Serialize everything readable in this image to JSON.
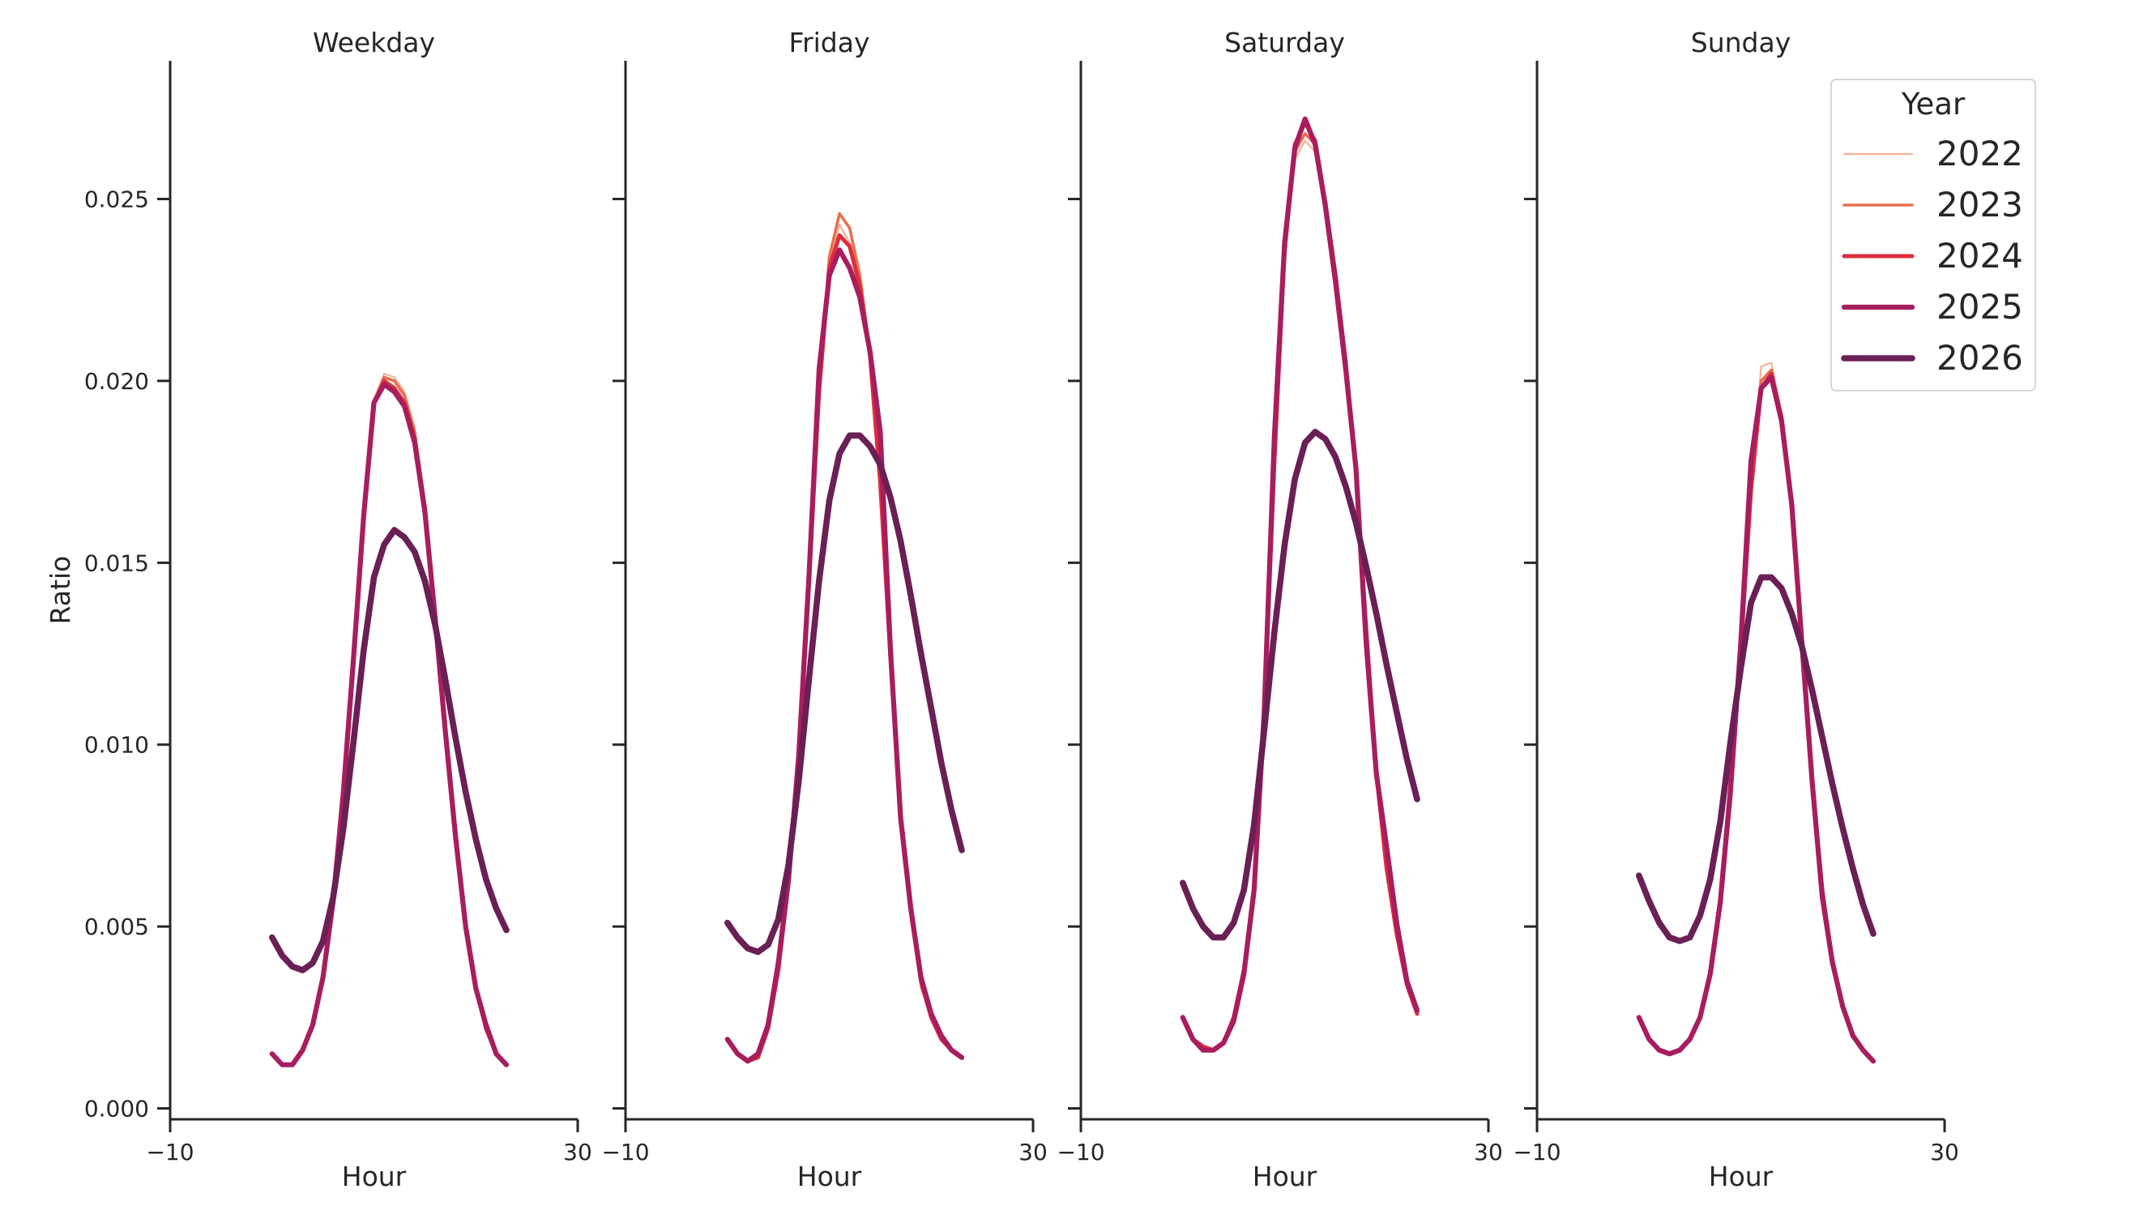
{
  "chart_data": {
    "type": "line",
    "ylabel": "Ratio",
    "xlabel": "Hour",
    "xlim": [
      -10,
      30
    ],
    "ylim": [
      -0.0003,
      0.0288
    ],
    "x_ticks": [
      -10,
      30
    ],
    "y_ticks": [
      0.0,
      0.005,
      0.01,
      0.015,
      0.02,
      0.025
    ],
    "y_tick_labels": [
      "0.000",
      "0.005",
      "0.010",
      "0.015",
      "0.020",
      "0.025"
    ],
    "x_tick_labels": [
      "−10",
      "30"
    ],
    "legend": {
      "title": "Year",
      "placement": "top-right",
      "entries": [
        "2022",
        "2023",
        "2024",
        "2025",
        "2026"
      ]
    },
    "series_colors": {
      "2022": "#f3b397",
      "2023": "#ea6f4f",
      "2024": "#dc2e3c",
      "2025": "#a81d5d",
      "2026": "#6a1f55"
    },
    "x": [
      0,
      1,
      2,
      3,
      4,
      5,
      6,
      7,
      8,
      9,
      10,
      11,
      12,
      13,
      14,
      15,
      16,
      17,
      18,
      19,
      20,
      21,
      22,
      23
    ],
    "panels": [
      {
        "title": "Weekday",
        "series": [
          {
            "name": "2022",
            "values": [
              0.0015,
              0.0012,
              0.0012,
              0.0016,
              0.0023,
              0.0036,
              0.0057,
              0.0086,
              0.0123,
              0.0163,
              0.0195,
              0.0202,
              0.0201,
              0.0197,
              0.0187,
              0.0166,
              0.0135,
              0.0104,
              0.0075,
              0.005,
              0.0033,
              0.0022,
              0.0015,
              0.0012
            ]
          },
          {
            "name": "2023",
            "values": [
              0.0015,
              0.0012,
              0.0012,
              0.0016,
              0.0023,
              0.0036,
              0.0057,
              0.0086,
              0.0123,
              0.0163,
              0.0194,
              0.0201,
              0.02,
              0.0196,
              0.0186,
              0.0166,
              0.0136,
              0.0104,
              0.0075,
              0.005,
              0.0033,
              0.0022,
              0.0015,
              0.0012
            ]
          },
          {
            "name": "2024",
            "values": [
              0.0015,
              0.0012,
              0.0012,
              0.0016,
              0.0023,
              0.0036,
              0.0057,
              0.0086,
              0.0123,
              0.0162,
              0.0194,
              0.02,
              0.0198,
              0.0194,
              0.0184,
              0.0165,
              0.0135,
              0.0104,
              0.0075,
              0.005,
              0.0033,
              0.0022,
              0.0015,
              0.0012
            ]
          },
          {
            "name": "2025",
            "values": [
              0.0015,
              0.0012,
              0.0012,
              0.0016,
              0.0023,
              0.0036,
              0.0057,
              0.0087,
              0.0124,
              0.0163,
              0.0194,
              0.0199,
              0.0197,
              0.0193,
              0.0183,
              0.0164,
              0.0135,
              0.0104,
              0.0075,
              0.005,
              0.0033,
              0.0023,
              0.0015,
              0.0012
            ]
          },
          {
            "name": "2026",
            "values": [
              0.0047,
              0.0042,
              0.0039,
              0.0038,
              0.004,
              0.0046,
              0.0058,
              0.0077,
              0.0101,
              0.0126,
              0.0146,
              0.0155,
              0.0159,
              0.0157,
              0.0153,
              0.0145,
              0.0133,
              0.0118,
              0.0102,
              0.0087,
              0.0074,
              0.0063,
              0.0055,
              0.0049
            ]
          }
        ]
      },
      {
        "title": "Friday",
        "series": [
          {
            "name": "2022",
            "values": [
              0.0019,
              0.0015,
              0.0013,
              0.0014,
              0.0022,
              0.0038,
              0.0062,
              0.0097,
              0.0145,
              0.0196,
              0.0232,
              0.0243,
              0.0238,
              0.0226,
              0.0206,
              0.0172,
              0.0124,
              0.0079,
              0.0054,
              0.0033,
              0.0025,
              0.0019,
              0.0016,
              0.0014
            ]
          },
          {
            "name": "2023",
            "values": [
              0.0019,
              0.0015,
              0.0013,
              0.0014,
              0.0022,
              0.0038,
              0.0062,
              0.0097,
              0.0146,
              0.0198,
              0.0234,
              0.0246,
              0.0242,
              0.0229,
              0.0208,
              0.0173,
              0.0125,
              0.0079,
              0.0054,
              0.0034,
              0.0025,
              0.0019,
              0.0016,
              0.0014
            ]
          },
          {
            "name": "2024",
            "values": [
              0.0019,
              0.0015,
              0.0013,
              0.0014,
              0.0022,
              0.0038,
              0.0062,
              0.0097,
              0.0145,
              0.0197,
              0.0231,
              0.024,
              0.0237,
              0.0226,
              0.0207,
              0.0172,
              0.0124,
              0.0079,
              0.0054,
              0.0035,
              0.0025,
              0.0019,
              0.0016,
              0.0014
            ]
          },
          {
            "name": "2025",
            "values": [
              0.0019,
              0.0015,
              0.0013,
              0.0015,
              0.0023,
              0.004,
              0.0063,
              0.0097,
              0.0146,
              0.0203,
              0.0229,
              0.0236,
              0.0231,
              0.0223,
              0.0208,
              0.0186,
              0.0126,
              0.008,
              0.0055,
              0.0036,
              0.0026,
              0.002,
              0.0016,
              0.0014
            ]
          },
          {
            "name": "2026",
            "values": [
              0.0051,
              0.0047,
              0.0044,
              0.0043,
              0.0045,
              0.0052,
              0.0067,
              0.009,
              0.0118,
              0.0145,
              0.0167,
              0.018,
              0.0185,
              0.0185,
              0.0182,
              0.0177,
              0.0168,
              0.0156,
              0.0141,
              0.0125,
              0.011,
              0.0095,
              0.0082,
              0.0071
            ]
          }
        ]
      },
      {
        "title": "Saturday",
        "series": [
          {
            "name": "2022",
            "values": [
              0.0025,
              0.0019,
              0.0017,
              0.0016,
              0.0018,
              0.0025,
              0.0038,
              0.0061,
              0.0107,
              0.0174,
              0.0232,
              0.0261,
              0.0266,
              0.0263,
              0.0248,
              0.0228,
              0.0204,
              0.0174,
              0.0131,
              0.0091,
              0.0066,
              0.0048,
              0.0034,
              0.0026
            ]
          },
          {
            "name": "2023",
            "values": [
              0.0025,
              0.0019,
              0.0017,
              0.0016,
              0.0018,
              0.0025,
              0.0038,
              0.0061,
              0.0108,
              0.0176,
              0.0234,
              0.0263,
              0.0268,
              0.0265,
              0.0249,
              0.0229,
              0.0205,
              0.0175,
              0.0132,
              0.0092,
              0.0066,
              0.0048,
              0.0034,
              0.0026
            ]
          },
          {
            "name": "2024",
            "values": [
              0.0025,
              0.0019,
              0.0017,
              0.0016,
              0.0018,
              0.0025,
              0.0038,
              0.0061,
              0.0109,
              0.0178,
              0.0237,
              0.0265,
              0.0271,
              0.0266,
              0.0249,
              0.0229,
              0.0205,
              0.0175,
              0.0132,
              0.0092,
              0.0066,
              0.0048,
              0.0034,
              0.0026
            ]
          },
          {
            "name": "2025",
            "values": [
              0.0025,
              0.0019,
              0.0016,
              0.0016,
              0.0018,
              0.0024,
              0.0037,
              0.006,
              0.0109,
              0.0185,
              0.0238,
              0.0264,
              0.0272,
              0.0265,
              0.0248,
              0.0227,
              0.0203,
              0.0176,
              0.0128,
              0.0092,
              0.0072,
              0.0051,
              0.0035,
              0.0027
            ]
          },
          {
            "name": "2026",
            "values": [
              0.0062,
              0.0055,
              0.005,
              0.0047,
              0.0047,
              0.0051,
              0.006,
              0.0078,
              0.0104,
              0.0131,
              0.0155,
              0.0173,
              0.0183,
              0.0186,
              0.0184,
              0.0179,
              0.0171,
              0.0161,
              0.0149,
              0.0136,
              0.0122,
              0.0109,
              0.0096,
              0.0085
            ]
          }
        ]
      },
      {
        "title": "Sunday",
        "series": [
          {
            "name": "2022",
            "values": [
              0.0025,
              0.0019,
              0.0016,
              0.0015,
              0.0016,
              0.0019,
              0.0025,
              0.0037,
              0.0056,
              0.0086,
              0.0127,
              0.0172,
              0.0204,
              0.0205,
              0.0191,
              0.0164,
              0.0127,
              0.0088,
              0.006,
              0.004,
              0.0028,
              0.002,
              0.0016,
              0.0013
            ]
          },
          {
            "name": "2023",
            "values": [
              0.0025,
              0.0019,
              0.0016,
              0.0015,
              0.0016,
              0.0019,
              0.0025,
              0.0037,
              0.0056,
              0.0086,
              0.0126,
              0.0171,
              0.02,
              0.0203,
              0.019,
              0.0165,
              0.0127,
              0.0089,
              0.006,
              0.004,
              0.0028,
              0.002,
              0.0016,
              0.0013
            ]
          },
          {
            "name": "2024",
            "values": [
              0.0025,
              0.0019,
              0.0016,
              0.0015,
              0.0016,
              0.0019,
              0.0025,
              0.0037,
              0.0056,
              0.0086,
              0.0126,
              0.017,
              0.0198,
              0.0202,
              0.019,
              0.0165,
              0.0127,
              0.0089,
              0.006,
              0.004,
              0.0028,
              0.002,
              0.0016,
              0.0013
            ]
          },
          {
            "name": "2025",
            "values": [
              0.0025,
              0.0019,
              0.0016,
              0.0015,
              0.0016,
              0.0019,
              0.0025,
              0.0037,
              0.0057,
              0.0088,
              0.0128,
              0.0178,
              0.0198,
              0.0201,
              0.0189,
              0.0166,
              0.0128,
              0.009,
              0.0058,
              0.004,
              0.0028,
              0.002,
              0.0016,
              0.0013
            ]
          },
          {
            "name": "2026",
            "values": [
              0.0064,
              0.0057,
              0.0051,
              0.0047,
              0.0046,
              0.0047,
              0.0053,
              0.0063,
              0.0079,
              0.0101,
              0.0121,
              0.0139,
              0.0146,
              0.0146,
              0.0143,
              0.0136,
              0.0127,
              0.0115,
              0.0102,
              0.0089,
              0.0077,
              0.0066,
              0.0056,
              0.0048
            ]
          }
        ]
      }
    ]
  }
}
